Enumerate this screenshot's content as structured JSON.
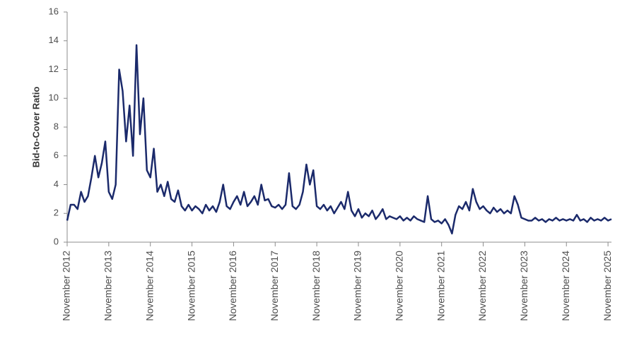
{
  "chart_data": {
    "type": "line",
    "y_label": "Bid-to-Cover Ratio",
    "color": "#1b2a6b",
    "x": [
      "2012-11",
      "2012-12",
      "2013-01",
      "2013-02",
      "2013-03",
      "2013-04",
      "2013-05",
      "2013-06",
      "2013-07",
      "2013-08",
      "2013-09",
      "2013-10",
      "2013-11",
      "2013-12",
      "2014-01",
      "2014-02",
      "2014-03",
      "2014-04",
      "2014-05",
      "2014-06",
      "2014-07",
      "2014-08",
      "2014-09",
      "2014-10",
      "2014-11",
      "2014-12",
      "2015-01",
      "2015-02",
      "2015-03",
      "2015-04",
      "2015-05",
      "2015-06",
      "2015-07",
      "2015-08",
      "2015-09",
      "2015-10",
      "2015-11",
      "2015-12",
      "2016-01",
      "2016-02",
      "2016-03",
      "2016-04",
      "2016-05",
      "2016-06",
      "2016-07",
      "2016-08",
      "2016-09",
      "2016-10",
      "2016-11",
      "2016-12",
      "2017-01",
      "2017-02",
      "2017-03",
      "2017-04",
      "2017-05",
      "2017-06",
      "2017-07",
      "2017-08",
      "2017-09",
      "2017-10",
      "2017-11",
      "2017-12",
      "2018-01",
      "2018-02",
      "2018-03",
      "2018-04",
      "2018-05",
      "2018-06",
      "2018-07",
      "2018-08",
      "2018-09",
      "2018-10",
      "2018-11",
      "2018-12",
      "2019-01",
      "2019-02",
      "2019-03",
      "2019-04",
      "2019-05",
      "2019-06",
      "2019-07",
      "2019-08",
      "2019-09",
      "2019-10",
      "2019-11",
      "2019-12",
      "2020-01",
      "2020-02",
      "2020-03",
      "2020-04",
      "2020-05",
      "2020-06",
      "2020-07",
      "2020-08",
      "2020-09",
      "2020-10",
      "2020-11",
      "2020-12",
      "2021-01",
      "2021-02",
      "2021-03",
      "2021-04",
      "2021-05",
      "2021-06",
      "2021-07",
      "2021-08",
      "2021-09",
      "2021-10",
      "2021-11",
      "2021-12",
      "2022-01",
      "2022-02",
      "2022-03",
      "2022-04",
      "2022-05",
      "2022-06",
      "2022-07",
      "2022-08",
      "2022-09",
      "2022-10",
      "2022-11",
      "2022-12",
      "2023-01",
      "2023-02",
      "2023-03",
      "2023-04",
      "2023-05",
      "2023-06",
      "2023-07",
      "2023-08",
      "2023-09",
      "2023-10",
      "2023-11",
      "2023-12",
      "2024-01",
      "2024-02",
      "2024-03",
      "2024-04",
      "2024-05",
      "2024-06",
      "2024-07",
      "2024-08",
      "2024-09",
      "2024-10",
      "2024-11",
      "2024-12",
      "2025-01",
      "2025-02",
      "2025-03",
      "2025-04",
      "2025-05",
      "2025-06",
      "2025-07",
      "2025-08",
      "2025-09",
      "2025-10",
      "2025-11",
      "2025-12"
    ],
    "values": [
      1.5,
      2.6,
      2.6,
      2.3,
      3.5,
      2.8,
      3.2,
      4.5,
      6.0,
      4.5,
      5.5,
      7.0,
      3.5,
      3.0,
      4.0,
      12.0,
      10.5,
      7.0,
      9.5,
      6.0,
      13.7,
      7.5,
      10.0,
      5.0,
      4.5,
      6.5,
      3.5,
      4.0,
      3.2,
      4.2,
      3.0,
      2.8,
      3.6,
      2.5,
      2.2,
      2.6,
      2.2,
      2.5,
      2.3,
      2.0,
      2.6,
      2.2,
      2.5,
      2.1,
      2.8,
      4.0,
      2.5,
      2.3,
      2.8,
      3.2,
      2.6,
      3.5,
      2.5,
      2.8,
      3.2,
      2.6,
      4.0,
      2.9,
      3.0,
      2.5,
      2.4,
      2.6,
      2.3,
      2.6,
      4.8,
      2.5,
      2.3,
      2.6,
      3.5,
      5.4,
      4.0,
      5.0,
      2.5,
      2.3,
      2.6,
      2.2,
      2.5,
      2.0,
      2.4,
      2.8,
      2.3,
      3.5,
      2.2,
      1.8,
      2.3,
      1.7,
      2.0,
      1.8,
      2.2,
      1.6,
      1.9,
      2.3,
      1.6,
      1.8,
      1.7,
      1.6,
      1.8,
      1.5,
      1.7,
      1.5,
      1.8,
      1.6,
      1.5,
      1.4,
      3.2,
      1.6,
      1.4,
      1.5,
      1.3,
      1.6,
      1.2,
      0.6,
      1.9,
      2.5,
      2.3,
      2.8,
      2.2,
      3.7,
      2.8,
      2.3,
      2.5,
      2.2,
      2.0,
      2.4,
      2.1,
      2.3,
      2.0,
      2.2,
      2.0,
      3.2,
      2.6,
      1.7,
      1.6,
      1.5,
      1.5,
      1.7,
      1.5,
      1.6,
      1.4,
      1.6,
      1.5,
      1.7,
      1.5,
      1.6,
      1.5,
      1.6,
      1.5,
      1.9,
      1.5,
      1.6,
      1.4,
      1.7,
      1.5,
      1.6,
      1.5,
      1.7,
      1.5,
      1.6
    ],
    "xlim": [
      "2012-11",
      "2025-12"
    ],
    "xticks": [
      {
        "value": "2012-11",
        "label": "November 2012"
      },
      {
        "value": "2013-11",
        "label": "November 2013"
      },
      {
        "value": "2014-11",
        "label": "November 2014"
      },
      {
        "value": "2015-11",
        "label": "November 2015"
      },
      {
        "value": "2016-11",
        "label": "November 2016"
      },
      {
        "value": "2017-11",
        "label": "November 2017"
      },
      {
        "value": "2018-11",
        "label": "November 2018"
      },
      {
        "value": "2019-11",
        "label": "November 2019"
      },
      {
        "value": "2020-11",
        "label": "November 2020"
      },
      {
        "value": "2021-11",
        "label": "November 2021"
      },
      {
        "value": "2022-11",
        "label": "November 2022"
      },
      {
        "value": "2023-11",
        "label": "November 2023"
      },
      {
        "value": "2024-11",
        "label": "November 2024"
      },
      {
        "value": "2025-11",
        "label": "November 2025"
      }
    ],
    "ylim": [
      0,
      16
    ],
    "yticks": [
      0,
      2,
      4,
      6,
      8,
      10,
      12,
      14,
      16
    ],
    "grid": false
  }
}
